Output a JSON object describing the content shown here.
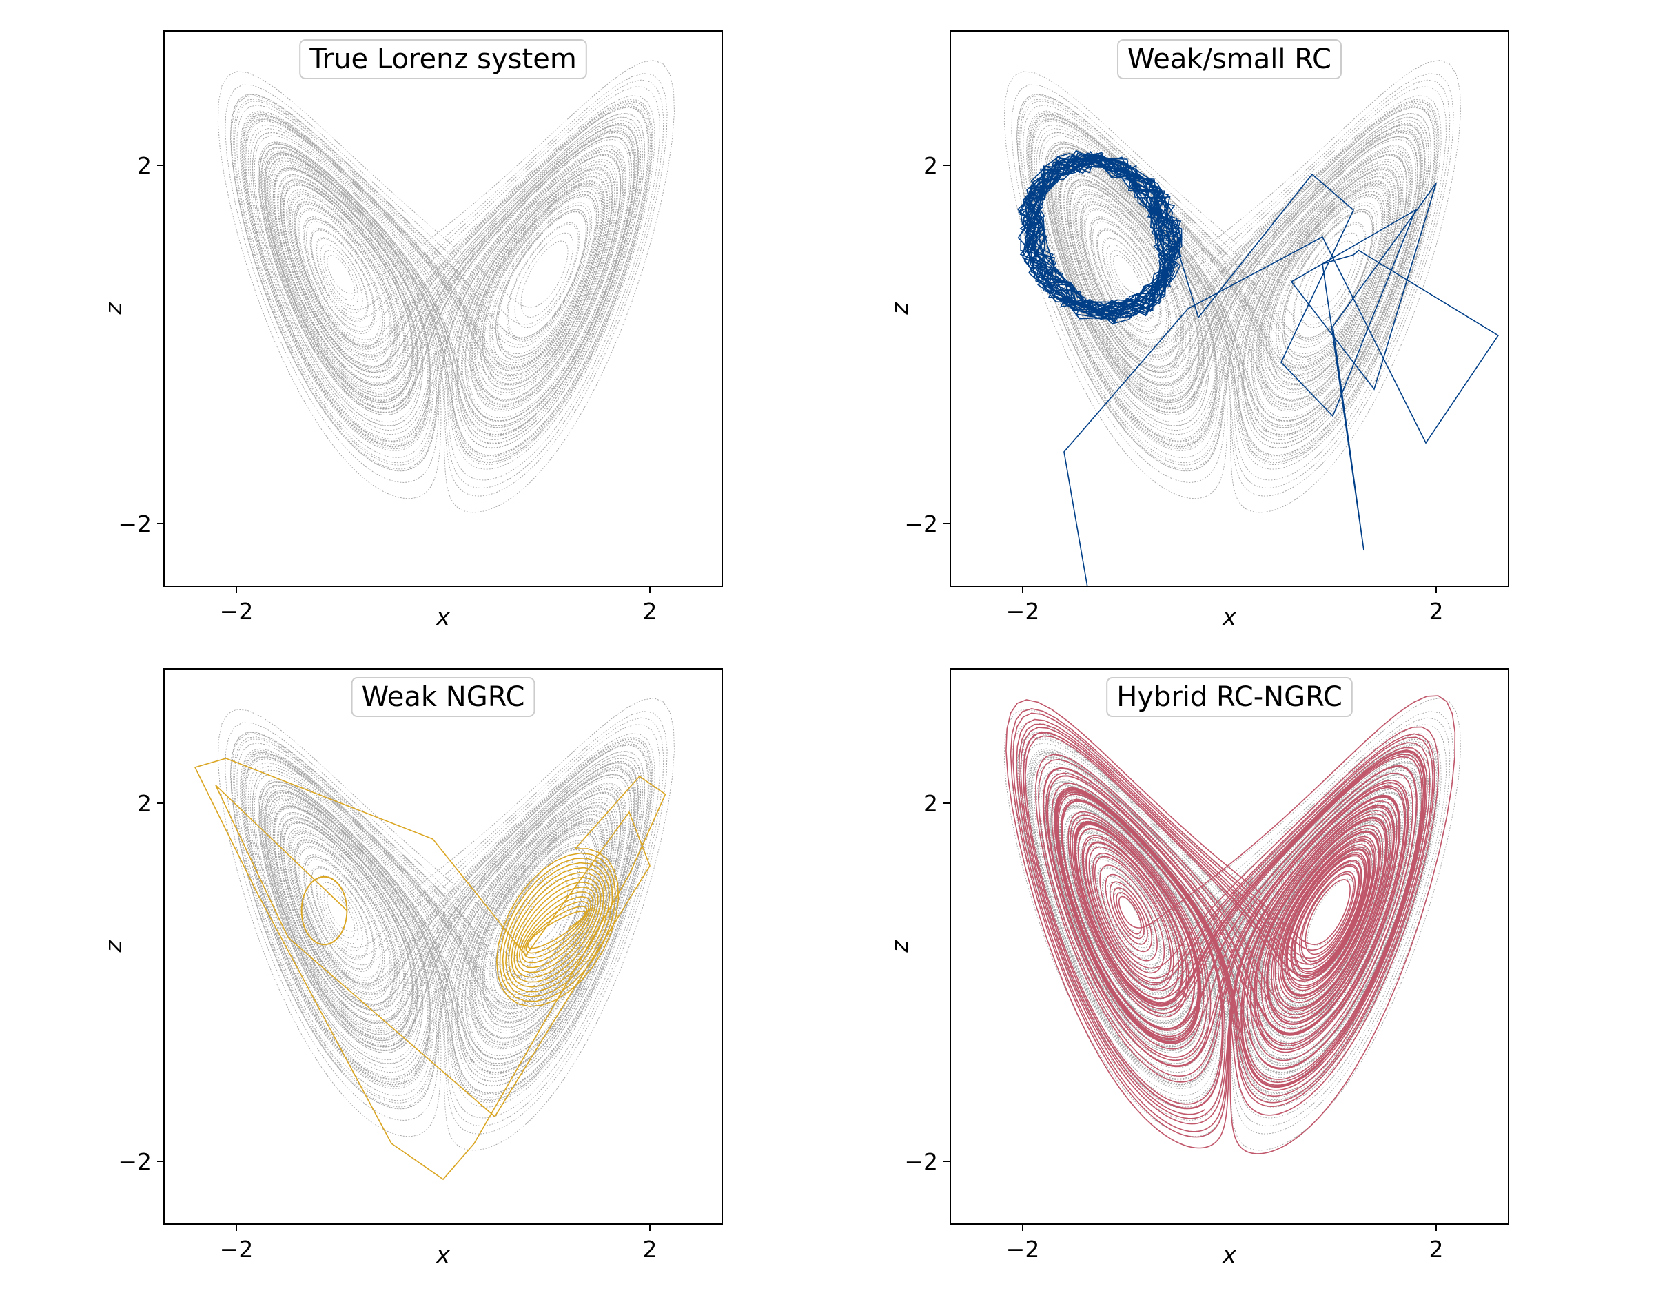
{
  "figure": {
    "background": "#ffffff"
  },
  "chart_data": [
    {
      "type": "line",
      "title": "True Lorenz system",
      "xlabel": "x",
      "ylabel": "z",
      "xticks": [
        "−2",
        "2"
      ],
      "yticks": [
        "2",
        "−2"
      ],
      "tick_values_x": [
        -2,
        2
      ],
      "tick_values_y": [
        2,
        -2
      ],
      "xlim": [
        -2.7,
        2.7
      ],
      "ylim": [
        -2.7,
        3.5
      ],
      "grid": false,
      "series": [
        {
          "role": "reference",
          "color": "#808080",
          "style": "dotted",
          "attractor": "lorenz",
          "cx": 1.05,
          "cz": 0.35,
          "outer_scale": 1.0
        }
      ]
    },
    {
      "type": "line",
      "title": "Weak/small RC",
      "xlabel": "x",
      "ylabel": "z",
      "xticks": [
        "−2",
        "2"
      ],
      "yticks": [
        "2",
        "−2"
      ],
      "tick_values_x": [
        -2,
        2
      ],
      "tick_values_y": [
        2,
        -2
      ],
      "xlim": [
        -2.7,
        2.7
      ],
      "ylim": [
        -2.7,
        3.5
      ],
      "grid": false,
      "series": [
        {
          "role": "reference",
          "color": "#808080",
          "style": "dotted",
          "attractor": "lorenz"
        },
        {
          "role": "prediction",
          "color": "#003f88",
          "style": "solid",
          "behavior": "collapses onto left wing, stray excursions to right wing and below axis"
        }
      ]
    },
    {
      "type": "line",
      "title": "Weak NGRC",
      "xlabel": "x",
      "ylabel": "z",
      "xticks": [
        "−2",
        "2"
      ],
      "yticks": [
        "2",
        "−2"
      ],
      "tick_values_x": [
        -2,
        2
      ],
      "tick_values_y": [
        2,
        -2
      ],
      "xlim": [
        -2.7,
        2.7
      ],
      "ylim": [
        -2.7,
        3.5
      ],
      "grid": false,
      "series": [
        {
          "role": "reference",
          "color": "#808080",
          "style": "dotted",
          "attractor": "lorenz"
        },
        {
          "role": "prediction",
          "color": "#daa520",
          "style": "solid",
          "behavior": "spirals on right wing then settles to fixed loop near left focus"
        }
      ]
    },
    {
      "type": "line",
      "title": "Hybrid RC-NGRC",
      "xlabel": "x",
      "ylabel": "z",
      "xticks": [
        "−2",
        "2"
      ],
      "yticks": [
        "2",
        "−2"
      ],
      "tick_values_x": [
        -2,
        2
      ],
      "tick_values_y": [
        2,
        -2
      ],
      "xlim": [
        -2.7,
        2.7
      ],
      "ylim": [
        -2.7,
        3.5
      ],
      "grid": false,
      "series": [
        {
          "role": "reference",
          "color": "#808080",
          "style": "dotted",
          "attractor": "lorenz"
        },
        {
          "role": "prediction",
          "color": "#c0566a",
          "style": "solid",
          "behavior": "fills full butterfly attractor"
        }
      ]
    }
  ]
}
